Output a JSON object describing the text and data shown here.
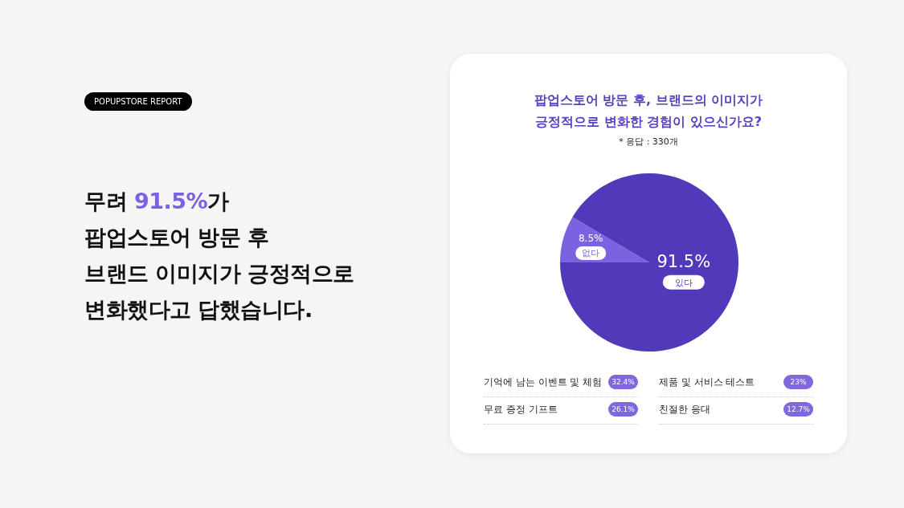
{
  "chart_data": {
    "type": "pie",
    "title": "팝업스토어 방문 후, 브랜드의 이미지가\n긍정적으로 변화한 경험이 있으신가요?",
    "subtitle": "* 응답 : 330개",
    "categories": [
      "없다",
      "있다"
    ],
    "values": [
      8.5,
      91.5
    ],
    "colors": [
      "#7b63e0",
      "#5139b9"
    ],
    "value_labels": [
      "8.5%",
      "91.5%"
    ],
    "legend": false,
    "annotations": [
      "POPUPSTORE REPORT",
      "무려 91.5%가\n팝업스토어 방문 후\n브랜드 이미지가 긍정적으로\n변화했다고 답했습니다.",
      "기억에 남는 이벤트 및 체험",
      "32.4%",
      "제품 및 서비스 테스트",
      "23%",
      "무료 증정 기프트",
      "26.1%",
      "친절한 응대",
      "12.7%"
    ]
  }
}
